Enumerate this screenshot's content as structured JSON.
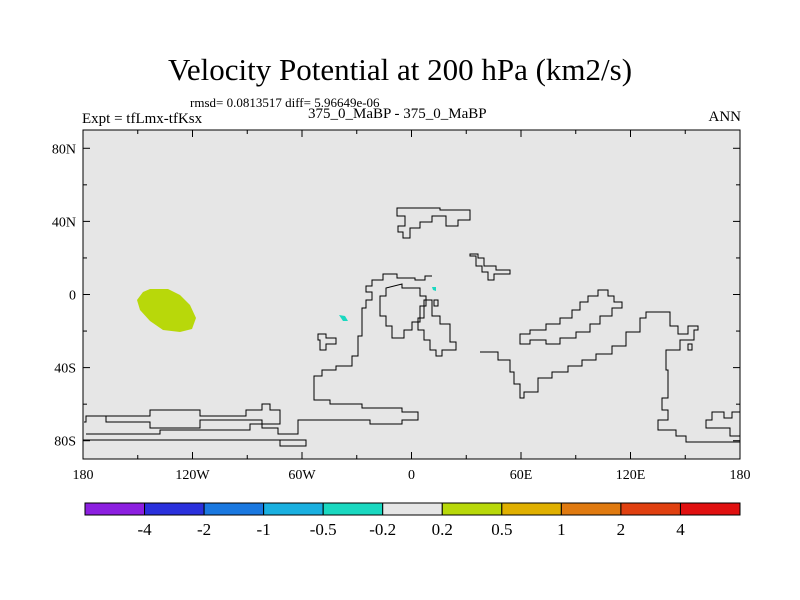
{
  "chart_data": {
    "type": "map",
    "title": "Velocity Potential at 200 hPa (km2/s)",
    "stats": "rmsd= 0.0813517 diff= 5.96649e-06",
    "left_label": "Expt = tfLmx-tfKsx",
    "center_label": "375_0_MaBP - 375_0_MaBP",
    "right_label": "ANN",
    "x_ticks": [
      {
        "lon": -180,
        "label": "180"
      },
      {
        "lon": -120,
        "label": "120W"
      },
      {
        "lon": -60,
        "label": "60W"
      },
      {
        "lon": 0,
        "label": "0"
      },
      {
        "lon": 60,
        "label": "60E"
      },
      {
        "lon": 120,
        "label": "120E"
      },
      {
        "lon": 180,
        "label": "180"
      }
    ],
    "y_ticks": [
      {
        "lat": 80,
        "label": "80N"
      },
      {
        "lat": 40,
        "label": "40N"
      },
      {
        "lat": 0,
        "label": "0"
      },
      {
        "lat": -40,
        "label": "40S"
      },
      {
        "lat": -80,
        "label": "80S"
      }
    ],
    "lon_range": [
      -180,
      180
    ],
    "lat_range": [
      -90,
      90
    ],
    "colorbar": {
      "colors": [
        "#8c1fe0",
        "#2a30dc",
        "#1a78e0",
        "#1ab0e0",
        "#1ad8c0",
        "#e6e6e6",
        "#b8d80a",
        "#e0b000",
        "#e07a10",
        "#e04010",
        "#e01010"
      ],
      "labels": [
        "-4",
        "-2",
        "-1",
        "-0.5",
        "-0.2",
        "0.2",
        "0.5",
        "1",
        "2",
        "4"
      ]
    },
    "anomalies": [
      {
        "lon": -127,
        "lat": -8,
        "category": "0.2 to 0.5"
      },
      {
        "lon": -37,
        "lat": -12,
        "category": "-0.5 to -0.2"
      },
      {
        "lon": 12,
        "lat": 4,
        "category": "-0.5 to -0.2"
      }
    ]
  }
}
